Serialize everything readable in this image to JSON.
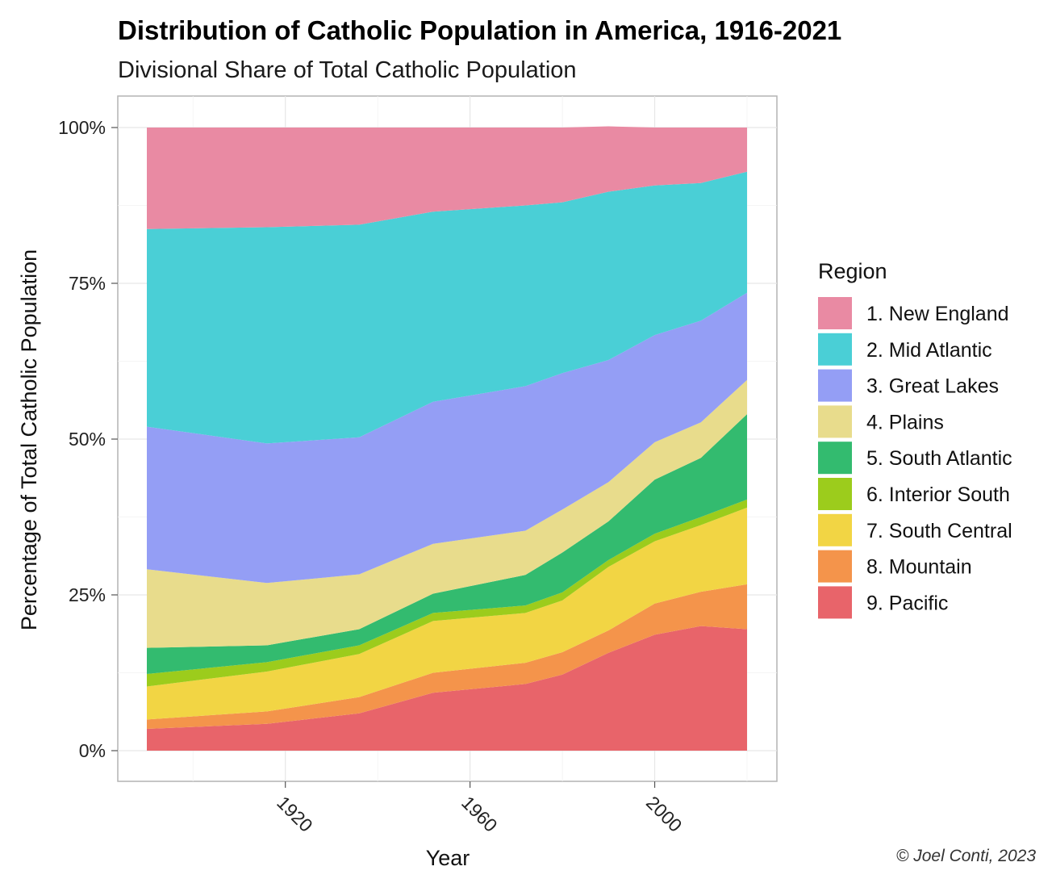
{
  "chart_data": {
    "type": "area",
    "stacked": true,
    "normalized": true,
    "title": "Distribution of Catholic Population in America, 1916-2021",
    "subtitle": "Divisional Share of Total Catholic Population",
    "xlabel": "Year",
    "ylabel": "Percentage of Total Catholic Population",
    "xlim": [
      1884,
      2027
    ],
    "ylim": [
      0,
      1
    ],
    "x_ticks": [
      1920,
      1960,
      2000
    ],
    "y_ticks": [
      0,
      0.25,
      0.5,
      0.75,
      1.0
    ],
    "y_tick_labels": [
      "0%",
      "25%",
      "50%",
      "75%",
      "100%"
    ],
    "legend_title": "Region",
    "legend_position": "right",
    "grid": true,
    "x": [
      1890,
      1916,
      1936,
      1952,
      1972,
      1980,
      1990,
      2000,
      2010,
      2020
    ],
    "series": [
      {
        "name": "9. Pacific",
        "color": "#e8646a",
        "values": [
          0.035,
          0.043,
          0.06,
          0.093,
          0.107,
          0.122,
          0.157,
          0.186,
          0.2,
          0.195
        ]
      },
      {
        "name": "8. Mountain",
        "color": "#f4944b",
        "values": [
          0.015,
          0.02,
          0.026,
          0.032,
          0.034,
          0.036,
          0.036,
          0.05,
          0.055,
          0.072
        ]
      },
      {
        "name": "7. South Central",
        "color": "#f2d544",
        "values": [
          0.053,
          0.064,
          0.069,
          0.083,
          0.08,
          0.083,
          0.102,
          0.1,
          0.107,
          0.123
        ]
      },
      {
        "name": "6. Interior South",
        "color": "#9ccc1c",
        "values": [
          0.02,
          0.015,
          0.014,
          0.013,
          0.012,
          0.013,
          0.011,
          0.012,
          0.013,
          0.013
        ]
      },
      {
        "name": "5. South Atlantic",
        "color": "#33bb6f",
        "values": [
          0.042,
          0.027,
          0.026,
          0.031,
          0.049,
          0.064,
          0.062,
          0.087,
          0.095,
          0.137
        ]
      },
      {
        "name": "4. Plains",
        "color": "#e8dc8c",
        "values": [
          0.126,
          0.1,
          0.088,
          0.08,
          0.071,
          0.069,
          0.063,
          0.06,
          0.057,
          0.055
        ]
      },
      {
        "name": "3. Great Lakes",
        "color": "#949ef5",
        "values": [
          0.229,
          0.224,
          0.22,
          0.228,
          0.232,
          0.219,
          0.196,
          0.172,
          0.163,
          0.14
        ]
      },
      {
        "name": "2. Mid Atlantic",
        "color": "#4acfd6",
        "values": [
          0.317,
          0.347,
          0.341,
          0.305,
          0.29,
          0.274,
          0.27,
          0.24,
          0.221,
          0.194
        ]
      },
      {
        "name": "1. New England",
        "color": "#e98aa3",
        "values": [
          0.163,
          0.16,
          0.156,
          0.135,
          0.125,
          0.12,
          0.105,
          0.093,
          0.089,
          0.071
        ]
      }
    ]
  },
  "legend_order": [
    "1. New England",
    "2. Mid Atlantic",
    "3. Great Lakes",
    "4. Plains",
    "5. South Atlantic",
    "6. Interior South",
    "7. South Central",
    "8. Mountain",
    "9. Pacific"
  ],
  "caption": "© Joel Conti, 2023"
}
